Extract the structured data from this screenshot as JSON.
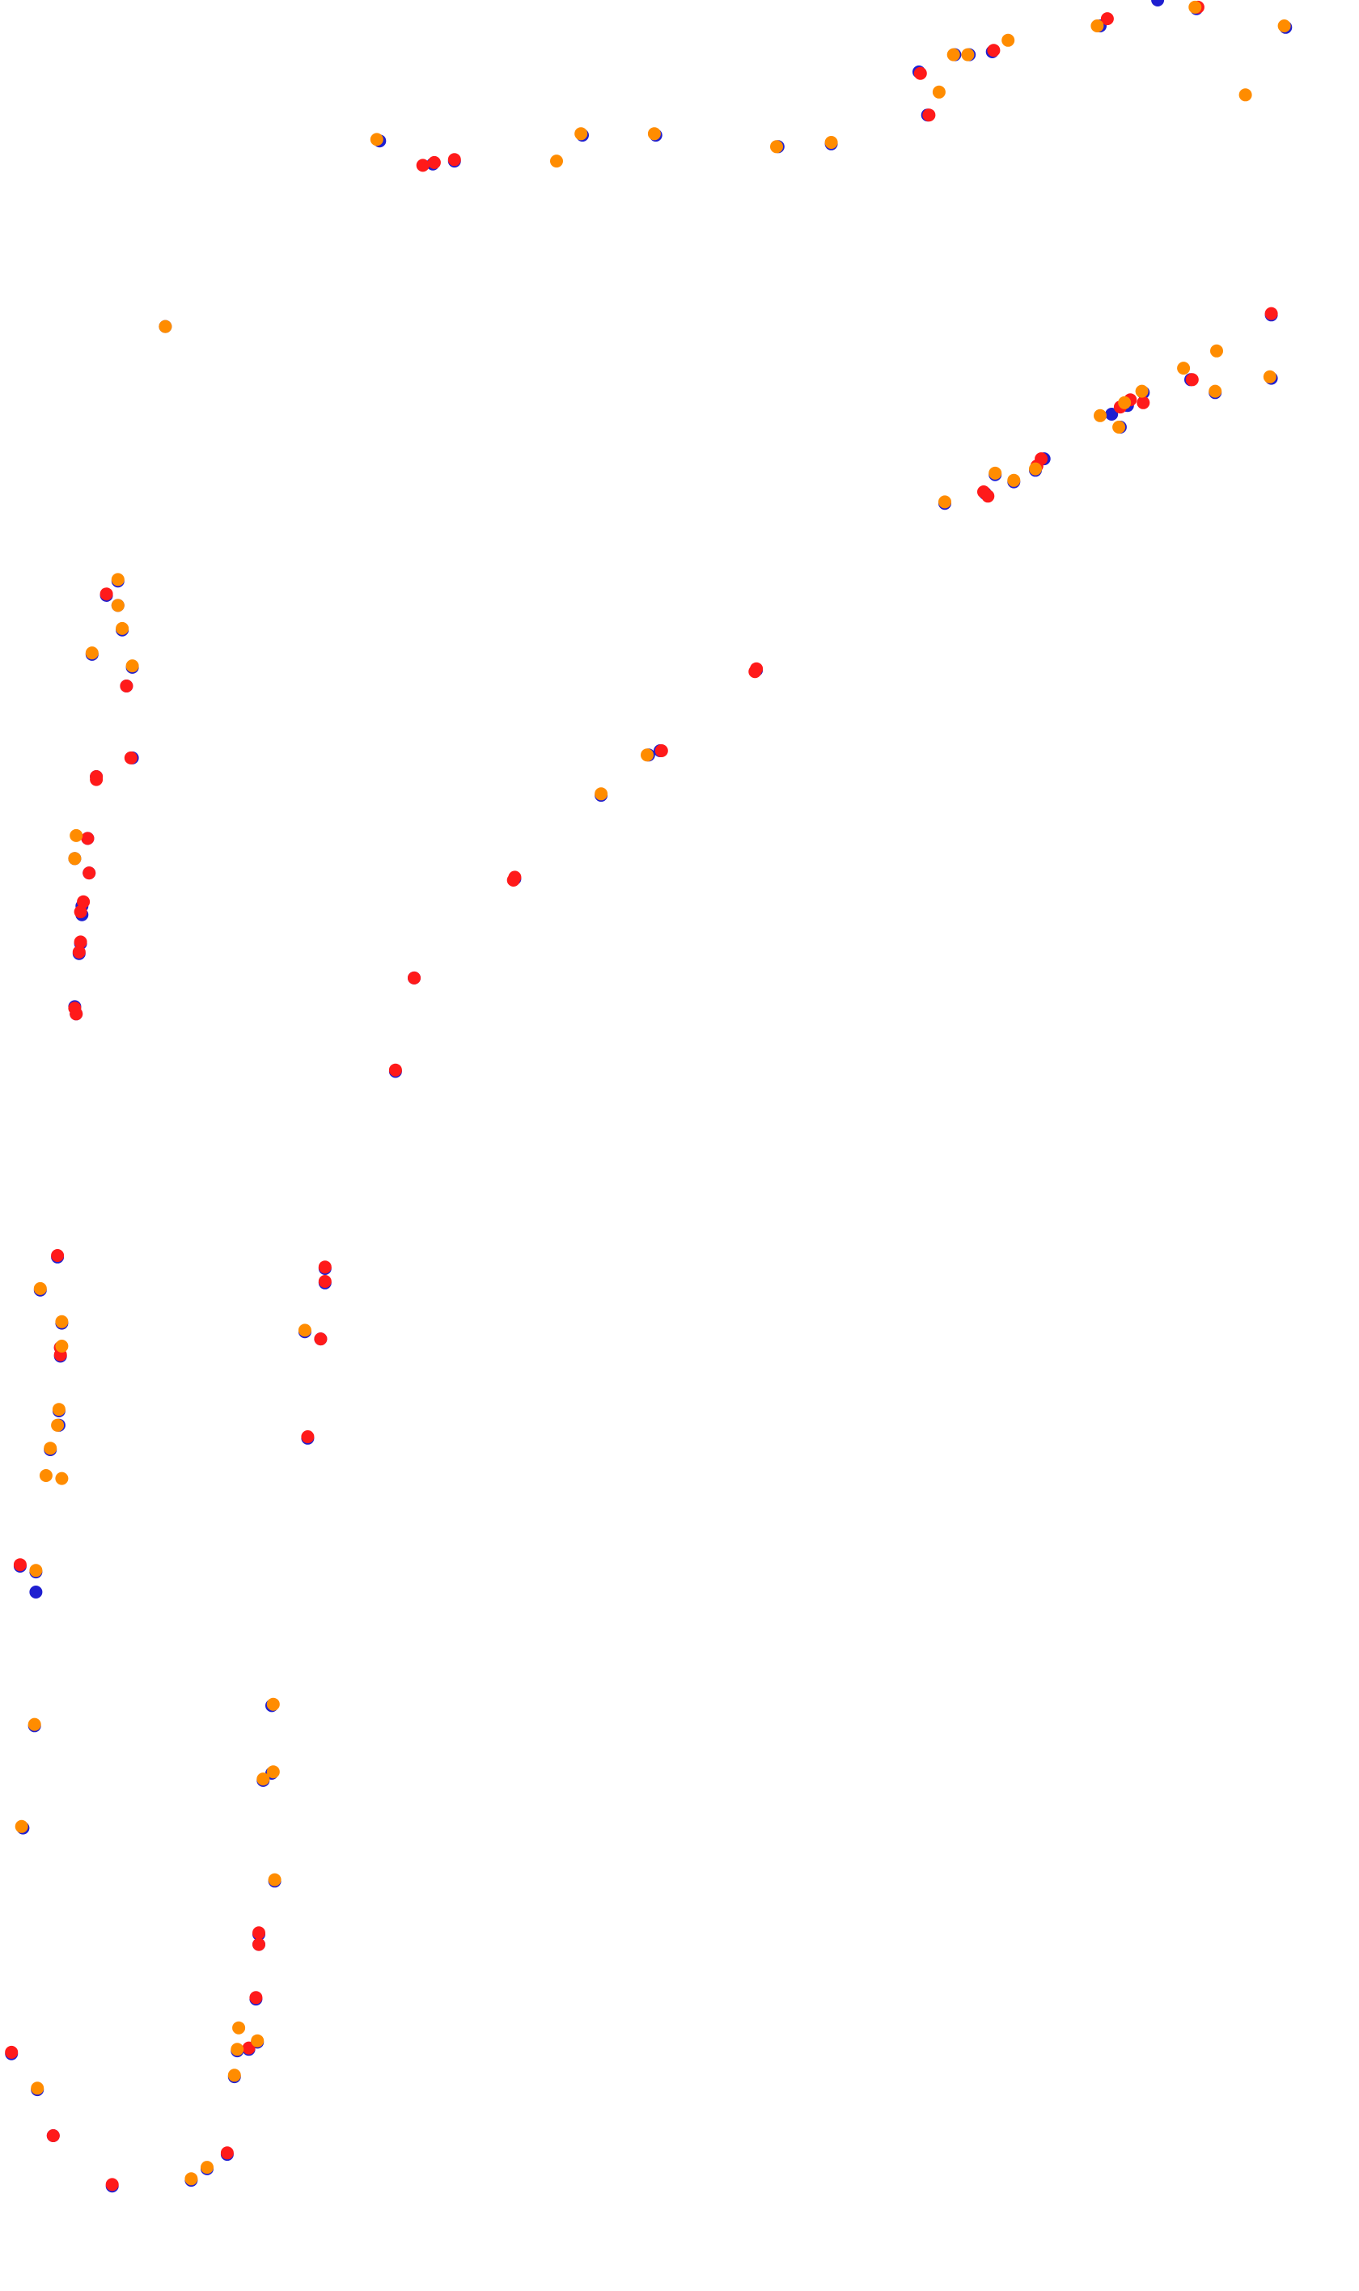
{
  "chart_data": {
    "type": "scatter",
    "title": "",
    "xlabel": "",
    "ylabel": "",
    "xlim": [
      0,
      945
    ],
    "ylim": [
      1593,
      0
    ],
    "grid": false,
    "axes": false,
    "colors": {
      "blue": "#1f1fd0",
      "red": "#ff1a1a",
      "orange": "#ff8c00"
    },
    "series": [
      {
        "color_key": "blue",
        "points": [
          [
            805,
            0
          ],
          [
            264,
            98
          ],
          [
            301,
            114
          ],
          [
            316,
            112
          ],
          [
            405,
            94
          ],
          [
            456,
            94
          ],
          [
            541,
            102
          ],
          [
            578,
            100
          ],
          [
            645,
            80
          ],
          [
            664,
            38
          ],
          [
            674,
            38
          ],
          [
            690,
            36
          ],
          [
            639,
            50
          ],
          [
            765,
            18
          ],
          [
            832,
            6
          ],
          [
            894,
            19
          ],
          [
            115,
            227
          ],
          [
            884,
            219
          ],
          [
            884,
            263
          ],
          [
            845,
            273
          ],
          [
            828,
            264
          ],
          [
            795,
            273
          ],
          [
            784,
            282
          ],
          [
            773,
            288
          ],
          [
            779,
            297
          ],
          [
            726,
            319
          ],
          [
            720,
            327
          ],
          [
            705,
            335
          ],
          [
            692,
            330
          ],
          [
            685,
            343
          ],
          [
            657,
            350
          ],
          [
            526,
            466
          ],
          [
            459,
            522
          ],
          [
            451,
            525
          ],
          [
            418,
            553
          ],
          [
            358,
            611
          ],
          [
            288,
            680
          ],
          [
            275,
            745
          ],
          [
            82,
            404
          ],
          [
            74,
            414
          ],
          [
            82,
            421
          ],
          [
            85,
            438
          ],
          [
            64,
            455
          ],
          [
            92,
            464
          ],
          [
            88,
            477
          ],
          [
            67,
            540
          ],
          [
            92,
            527
          ],
          [
            52,
            597
          ],
          [
            61,
            583
          ],
          [
            62,
            607
          ],
          [
            57,
            630
          ],
          [
            57,
            636
          ],
          [
            56,
            656
          ],
          [
            55,
            663
          ],
          [
            52,
            700
          ],
          [
            53,
            705
          ],
          [
            40,
            874
          ],
          [
            28,
            897
          ],
          [
            43,
            920
          ],
          [
            42,
            937
          ],
          [
            42,
            943
          ],
          [
            41,
            981
          ],
          [
            41,
            991
          ],
          [
            35,
            1008
          ],
          [
            226,
            882
          ],
          [
            226,
            892
          ],
          [
            212,
            926
          ],
          [
            223,
            931
          ],
          [
            214,
            1000
          ],
          [
            14,
            1089
          ],
          [
            25,
            1093
          ],
          [
            25,
            1107
          ],
          [
            24,
            1200
          ],
          [
            16,
            1271
          ],
          [
            189,
            1186
          ],
          [
            189,
            1233
          ],
          [
            183,
            1238
          ],
          [
            191,
            1308
          ],
          [
            180,
            1345
          ],
          [
            180,
            1352
          ],
          [
            178,
            1390
          ],
          [
            179,
            1420
          ],
          [
            173,
            1425
          ],
          [
            165,
            1426
          ],
          [
            163,
            1444
          ],
          [
            8,
            1428
          ],
          [
            26,
            1453
          ],
          [
            37,
            1485
          ],
          [
            158,
            1498
          ],
          [
            144,
            1508
          ],
          [
            133,
            1516
          ],
          [
            78,
            1520
          ]
        ]
      },
      {
        "color_key": "red",
        "points": [
          [
            294,
            115
          ],
          [
            302,
            113
          ],
          [
            316,
            111
          ],
          [
            640,
            51
          ],
          [
            646,
            80
          ],
          [
            691,
            35
          ],
          [
            770,
            13
          ],
          [
            833,
            5
          ],
          [
            884,
            218
          ],
          [
            829,
            264
          ],
          [
            795,
            280
          ],
          [
            786,
            278
          ],
          [
            779,
            283
          ],
          [
            724,
            319
          ],
          [
            721,
            324
          ],
          [
            684,
            342
          ],
          [
            687,
            345
          ],
          [
            525,
            467
          ],
          [
            526,
            465
          ],
          [
            460,
            522
          ],
          [
            358,
            610
          ],
          [
            357,
            612
          ],
          [
            288,
            680
          ],
          [
            275,
            744
          ],
          [
            74,
            413
          ],
          [
            88,
            477
          ],
          [
            67,
            540
          ],
          [
            67,
            542
          ],
          [
            91,
            527
          ],
          [
            61,
            583
          ],
          [
            62,
            607
          ],
          [
            58,
            627
          ],
          [
            56,
            634
          ],
          [
            56,
            655
          ],
          [
            55,
            662
          ],
          [
            52,
            701
          ],
          [
            53,
            705
          ],
          [
            40,
            873
          ],
          [
            42,
            937
          ],
          [
            42,
            942
          ],
          [
            226,
            881
          ],
          [
            226,
            891
          ],
          [
            223,
            931
          ],
          [
            214,
            999
          ],
          [
            14,
            1088
          ],
          [
            180,
            1344
          ],
          [
            180,
            1352
          ],
          [
            178,
            1389
          ],
          [
            173,
            1424
          ],
          [
            8,
            1427
          ],
          [
            37,
            1485
          ],
          [
            158,
            1497
          ],
          [
            78,
            1519
          ]
        ]
      },
      {
        "color_key": "orange",
        "points": [
          [
            262,
            97
          ],
          [
            387,
            112
          ],
          [
            404,
            93
          ],
          [
            455,
            93
          ],
          [
            540,
            102
          ],
          [
            578,
            99
          ],
          [
            653,
            64
          ],
          [
            663,
            38
          ],
          [
            673,
            38
          ],
          [
            701,
            28
          ],
          [
            763,
            18
          ],
          [
            831,
            5
          ],
          [
            866,
            66
          ],
          [
            893,
            18
          ],
          [
            115,
            227
          ],
          [
            883,
            262
          ],
          [
            846,
            244
          ],
          [
            823,
            256
          ],
          [
            845,
            272
          ],
          [
            794,
            272
          ],
          [
            765,
            289
          ],
          [
            782,
            280
          ],
          [
            778,
            297
          ],
          [
            720,
            326
          ],
          [
            705,
            334
          ],
          [
            692,
            329
          ],
          [
            657,
            349
          ],
          [
            418,
            552
          ],
          [
            450,
            525
          ],
          [
            82,
            403
          ],
          [
            82,
            421
          ],
          [
            85,
            437
          ],
          [
            64,
            454
          ],
          [
            92,
            463
          ],
          [
            53,
            581
          ],
          [
            52,
            597
          ],
          [
            28,
            896
          ],
          [
            43,
            919
          ],
          [
            43,
            936
          ],
          [
            41,
            980
          ],
          [
            40,
            991
          ],
          [
            35,
            1007
          ],
          [
            32,
            1026
          ],
          [
            43,
            1028
          ],
          [
            212,
            925
          ],
          [
            25,
            1092
          ],
          [
            24,
            1199
          ],
          [
            15,
            1270
          ],
          [
            190,
            1185
          ],
          [
            190,
            1232
          ],
          [
            183,
            1237
          ],
          [
            191,
            1307
          ],
          [
            166,
            1410
          ],
          [
            165,
            1425
          ],
          [
            179,
            1419
          ],
          [
            163,
            1443
          ],
          [
            26,
            1452
          ],
          [
            144,
            1507
          ],
          [
            133,
            1515
          ]
        ]
      }
    ]
  }
}
